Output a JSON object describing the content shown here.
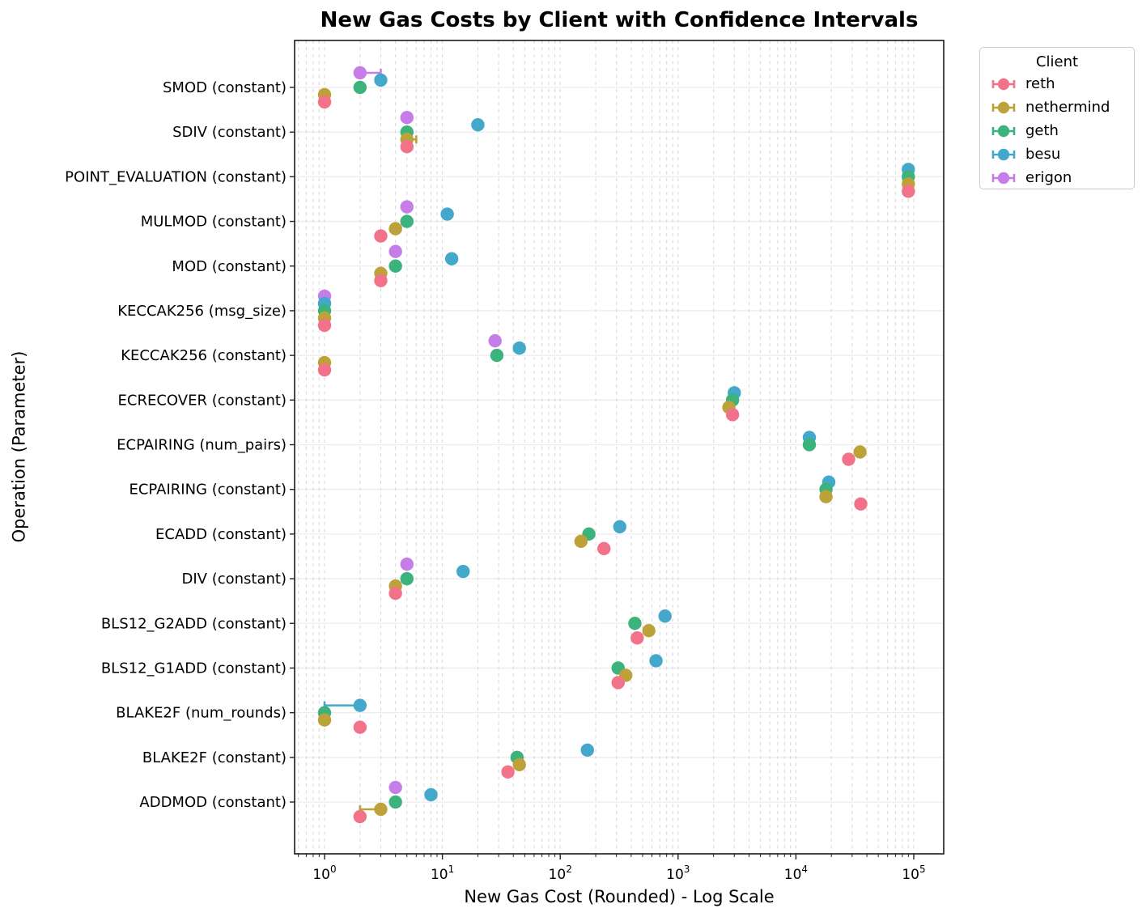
{
  "chart_data": {
    "type": "scatter",
    "orientation": "horizontal",
    "title": "New Gas Costs by Client with Confidence Intervals",
    "xlabel": "New Gas Cost (Rounded) - Log Scale",
    "ylabel": "Operation (Parameter)",
    "x_scale": "log",
    "x_ticks": [
      1,
      10,
      100,
      1000,
      10000,
      100000
    ],
    "x_tick_exponents": [
      0,
      1,
      2,
      3,
      4,
      5
    ],
    "x_range": [
      0.56,
      175000
    ],
    "grid": true,
    "legend_title": "Client",
    "legend_position": "upper-right-outside",
    "clients": [
      {
        "name": "reth",
        "color": "#f2728a"
      },
      {
        "name": "nethermind",
        "color": "#bda23a"
      },
      {
        "name": "geth",
        "color": "#3cb27d"
      },
      {
        "name": "besu",
        "color": "#44a8cb"
      },
      {
        "name": "erigon",
        "color": "#c77de9"
      }
    ],
    "rows": [
      {
        "label": "SMOD (constant)",
        "points": [
          {
            "client": "erigon",
            "value": 2,
            "ci": [
              2,
              3
            ]
          },
          {
            "client": "besu",
            "value": 3
          },
          {
            "client": "geth",
            "value": 2
          },
          {
            "client": "nethermind",
            "value": 1
          },
          {
            "client": "reth",
            "value": 1
          }
        ]
      },
      {
        "label": "SDIV (constant)",
        "points": [
          {
            "client": "erigon",
            "value": 5
          },
          {
            "client": "besu",
            "value": 20
          },
          {
            "client": "geth",
            "value": 5
          },
          {
            "client": "nethermind",
            "value": 5,
            "ci": [
              5,
              6
            ]
          },
          {
            "client": "reth",
            "value": 5
          }
        ]
      },
      {
        "label": "POINT_EVALUATION (constant)",
        "points": [
          {
            "client": "besu",
            "value": 90000
          },
          {
            "client": "geth",
            "value": 90000
          },
          {
            "client": "nethermind",
            "value": 90000
          },
          {
            "client": "reth",
            "value": 90000
          }
        ]
      },
      {
        "label": "MULMOD (constant)",
        "points": [
          {
            "client": "erigon",
            "value": 5
          },
          {
            "client": "besu",
            "value": 11
          },
          {
            "client": "geth",
            "value": 5
          },
          {
            "client": "nethermind",
            "value": 4
          },
          {
            "client": "reth",
            "value": 3
          }
        ]
      },
      {
        "label": "MOD (constant)",
        "points": [
          {
            "client": "erigon",
            "value": 4
          },
          {
            "client": "besu",
            "value": 12
          },
          {
            "client": "geth",
            "value": 4
          },
          {
            "client": "nethermind",
            "value": 3
          },
          {
            "client": "reth",
            "value": 3
          }
        ]
      },
      {
        "label": "KECCAK256 (msg_size)",
        "points": [
          {
            "client": "erigon",
            "value": 1
          },
          {
            "client": "besu",
            "value": 1
          },
          {
            "client": "geth",
            "value": 1
          },
          {
            "client": "nethermind",
            "value": 1
          },
          {
            "client": "reth",
            "value": 1
          }
        ]
      },
      {
        "label": "KECCAK256 (constant)",
        "points": [
          {
            "client": "erigon",
            "value": 28
          },
          {
            "client": "besu",
            "value": 45
          },
          {
            "client": "geth",
            "value": 29
          },
          {
            "client": "nethermind",
            "value": 1
          },
          {
            "client": "reth",
            "value": 1
          }
        ]
      },
      {
        "label": "ECRECOVER (constant)",
        "points": [
          {
            "client": "besu",
            "value": 3000
          },
          {
            "client": "geth",
            "value": 2900
          },
          {
            "client": "nethermind",
            "value": 2700
          },
          {
            "client": "reth",
            "value": 2900
          }
        ]
      },
      {
        "label": "ECPAIRING (num_pairs)",
        "points": [
          {
            "client": "besu",
            "value": 13000
          },
          {
            "client": "geth",
            "value": 13000
          },
          {
            "client": "nethermind",
            "value": 35000
          },
          {
            "client": "reth",
            "value": 28000
          }
        ]
      },
      {
        "label": "ECPAIRING (constant)",
        "points": [
          {
            "client": "besu",
            "value": 19000
          },
          {
            "client": "geth",
            "value": 18000
          },
          {
            "client": "nethermind",
            "value": 18000
          },
          {
            "client": "reth",
            "value": 35500
          }
        ]
      },
      {
        "label": "ECADD (constant)",
        "points": [
          {
            "client": "besu",
            "value": 320
          },
          {
            "client": "geth",
            "value": 175
          },
          {
            "client": "nethermind",
            "value": 150
          },
          {
            "client": "reth",
            "value": 235
          }
        ]
      },
      {
        "label": "DIV (constant)",
        "points": [
          {
            "client": "erigon",
            "value": 5
          },
          {
            "client": "besu",
            "value": 15
          },
          {
            "client": "geth",
            "value": 5
          },
          {
            "client": "nethermind",
            "value": 4
          },
          {
            "client": "reth",
            "value": 4
          }
        ]
      },
      {
        "label": "BLS12_G2ADD (constant)",
        "points": [
          {
            "client": "besu",
            "value": 775
          },
          {
            "client": "geth",
            "value": 430
          },
          {
            "client": "nethermind",
            "value": 565
          },
          {
            "client": "reth",
            "value": 450
          }
        ]
      },
      {
        "label": "BLS12_G1ADD (constant)",
        "points": [
          {
            "client": "besu",
            "value": 650
          },
          {
            "client": "geth",
            "value": 310
          },
          {
            "client": "nethermind",
            "value": 360
          },
          {
            "client": "reth",
            "value": 310
          }
        ]
      },
      {
        "label": "BLAKE2F (num_rounds)",
        "points": [
          {
            "client": "besu",
            "value": 2,
            "ci": [
              1,
              2
            ]
          },
          {
            "client": "geth",
            "value": 1
          },
          {
            "client": "nethermind",
            "value": 1
          },
          {
            "client": "reth",
            "value": 2
          }
        ]
      },
      {
        "label": "BLAKE2F (constant)",
        "points": [
          {
            "client": "besu",
            "value": 170
          },
          {
            "client": "geth",
            "value": 43
          },
          {
            "client": "nethermind",
            "value": 45
          },
          {
            "client": "reth",
            "value": 36
          }
        ]
      },
      {
        "label": "ADDMOD (constant)",
        "points": [
          {
            "client": "erigon",
            "value": 4
          },
          {
            "client": "besu",
            "value": 8
          },
          {
            "client": "geth",
            "value": 4
          },
          {
            "client": "nethermind",
            "value": 3,
            "ci": [
              2,
              3
            ]
          },
          {
            "client": "reth",
            "value": 2
          }
        ]
      }
    ]
  }
}
